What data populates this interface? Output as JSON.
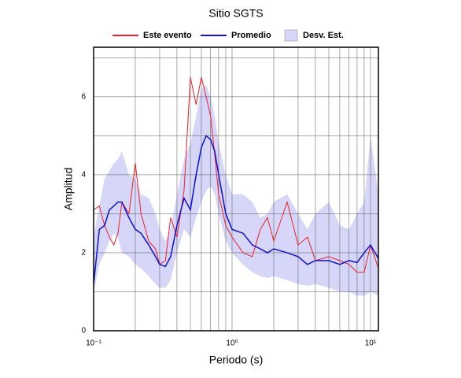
{
  "chart_data": {
    "type": "line",
    "title": "Sitio SGTS",
    "xlabel": "Periodo (s)",
    "ylabel": "Amplitud",
    "xscale": "log",
    "xlim": [
      0.1,
      11.4
    ],
    "ylim": [
      0,
      7.27
    ],
    "xticks": [
      {
        "value": 0.1,
        "label": "10⁻¹"
      },
      {
        "value": 1,
        "label": "10⁰"
      },
      {
        "value": 10,
        "label": "10¹"
      }
    ],
    "yticks": [
      0,
      2,
      4,
      6
    ],
    "xgrid": [
      0.2,
      0.3,
      0.4,
      0.5,
      0.6,
      0.7,
      0.8,
      0.9,
      2,
      3,
      4,
      5,
      6,
      7,
      8,
      9
    ],
    "ygrid": [
      1,
      3,
      5,
      7
    ],
    "x": [
      0.1,
      0.11,
      0.12,
      0.13,
      0.14,
      0.15,
      0.16,
      0.18,
      0.2,
      0.22,
      0.25,
      0.28,
      0.3,
      0.33,
      0.36,
      0.4,
      0.45,
      0.5,
      0.55,
      0.6,
      0.65,
      0.7,
      0.75,
      0.8,
      0.9,
      1.0,
      1.2,
      1.4,
      1.6,
      1.8,
      2,
      2.5,
      3,
      3.5,
      4,
      5,
      6,
      7,
      8,
      9,
      10,
      11.4
    ],
    "series": [
      {
        "name": "Este evento",
        "color": "#e8202a",
        "values": [
          3.1,
          3.2,
          2.7,
          2.4,
          2.2,
          2.5,
          3.3,
          3.0,
          4.3,
          3.0,
          2.3,
          2.1,
          1.7,
          1.8,
          2.9,
          2.4,
          3.6,
          6.5,
          5.8,
          6.5,
          6.0,
          5.5,
          4.5,
          3.5,
          2.7,
          2.4,
          2.0,
          1.9,
          2.6,
          2.9,
          2.3,
          3.3,
          2.2,
          2.4,
          1.8,
          1.9,
          1.8,
          1.7,
          1.5,
          1.5,
          2.2,
          1.6
        ]
      },
      {
        "name": "Promedio",
        "color": "#1010d0",
        "values": [
          1.2,
          2.6,
          2.7,
          3.1,
          3.2,
          3.3,
          3.3,
          2.9,
          2.6,
          2.5,
          2.2,
          1.9,
          1.7,
          1.65,
          1.9,
          2.7,
          3.4,
          3.1,
          4.0,
          4.7,
          5.0,
          4.9,
          4.6,
          4.0,
          3.0,
          2.6,
          2.5,
          2.2,
          2.1,
          2.0,
          2.1,
          2.0,
          1.9,
          1.7,
          1.8,
          1.8,
          1.7,
          1.8,
          1.75,
          2.0,
          2.2,
          1.85
        ]
      }
    ],
    "band": {
      "name": "Desv. Est.",
      "color": "#d6d6f8",
      "upper": [
        2.4,
        3.2,
        3.9,
        4.1,
        4.3,
        4.4,
        4.6,
        4.0,
        3.9,
        3.5,
        3.4,
        3.0,
        2.6,
        2.3,
        2.6,
        3.5,
        4.4,
        4.8,
        5.5,
        6.2,
        6.3,
        6.0,
        5.5,
        4.8,
        4.0,
        3.5,
        3.5,
        3.3,
        2.9,
        3.0,
        3.3,
        3.5,
        3.0,
        2.6,
        3.0,
        3.3,
        2.7,
        2.6,
        3.0,
        3.3,
        5.0,
        3.5
      ],
      "lower": [
        1.0,
        1.7,
        2.0,
        2.3,
        2.5,
        2.4,
        2.0,
        1.9,
        1.7,
        1.6,
        1.4,
        1.2,
        1.1,
        1.1,
        1.3,
        2.0,
        2.6,
        2.4,
        2.9,
        3.3,
        3.6,
        3.7,
        3.5,
        3.0,
        2.3,
        2.0,
        1.7,
        1.5,
        1.4,
        1.35,
        1.4,
        1.3,
        1.2,
        1.15,
        1.2,
        1.1,
        1.0,
        1.0,
        0.9,
        0.9,
        1.0,
        0.9
      ]
    }
  }
}
